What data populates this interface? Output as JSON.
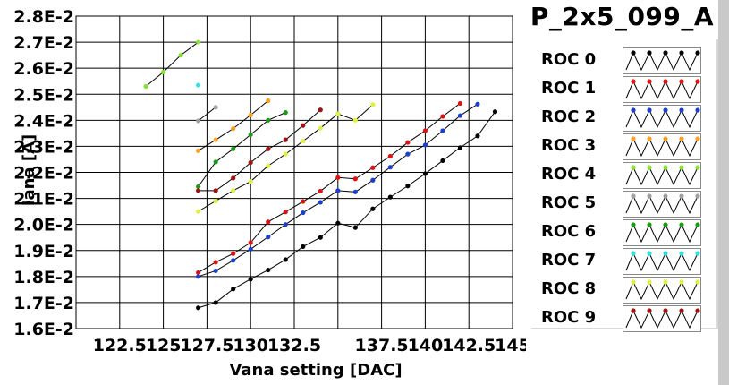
{
  "chart_data": {
    "type": "line",
    "title": "P_2x5_099_A",
    "xlabel": "Vana setting [DAC]",
    "ylabel": "Iana [A]",
    "xlim": [
      120,
      145
    ],
    "ylim": [
      0.016,
      0.028
    ],
    "x_ticks": [
      122.5,
      125,
      127.5,
      130,
      132.5,
      135,
      137.5,
      140,
      142.5,
      145
    ],
    "x_tick_labels": [
      "122.5",
      "125",
      "127.5",
      "130",
      "132.5",
      "",
      "137.5",
      "140",
      "142.5",
      "145"
    ],
    "y_ticks": [
      0.016,
      0.017,
      0.018,
      0.019,
      0.02,
      0.021,
      0.022,
      0.023,
      0.024,
      0.025,
      0.026,
      0.027,
      0.028
    ],
    "y_tick_labels": [
      "1.6E-2",
      "1.7E-2",
      "1.8E-2",
      "1.9E-2",
      "2.0E-2",
      "2.1E-2",
      "2.2E-2",
      "2.3E-2",
      "2.4E-2",
      "2.5E-2",
      "2.6E-2",
      "2.7E-2",
      "2.8E-2"
    ],
    "grid": true,
    "legend_position": "right",
    "series": [
      {
        "name": "ROC 0",
        "color": "#000000",
        "x": [
          127,
          128,
          129,
          130,
          131,
          132,
          133,
          134,
          135,
          136,
          137,
          138,
          139,
          140,
          141,
          142,
          143,
          144
        ],
        "y": [
          0.0168,
          0.017,
          0.01752,
          0.0179,
          0.01825,
          0.01865,
          0.01915,
          0.0195,
          0.02005,
          0.01988,
          0.0206,
          0.02105,
          0.02148,
          0.02195,
          0.02245,
          0.02295,
          0.0234,
          0.02433
        ]
      },
      {
        "name": "ROC 1",
        "color": "#e01010",
        "x": [
          127,
          128,
          129,
          130,
          131,
          132,
          133,
          134,
          135,
          136,
          137,
          138,
          139,
          140,
          141,
          142
        ],
        "y": [
          0.01815,
          0.01855,
          0.01888,
          0.0193,
          0.0201,
          0.02048,
          0.02088,
          0.02128,
          0.0218,
          0.02175,
          0.02218,
          0.02262,
          0.02315,
          0.0236,
          0.02415,
          0.02465
        ]
      },
      {
        "name": "ROC 2",
        "color": "#1a3fd0",
        "x": [
          127,
          128,
          129,
          130,
          131,
          132,
          133,
          134,
          135,
          136,
          137,
          138,
          139,
          140,
          141,
          142,
          143
        ],
        "y": [
          0.018,
          0.01822,
          0.01862,
          0.01905,
          0.01952,
          0.02,
          0.02045,
          0.02085,
          0.0213,
          0.02125,
          0.0217,
          0.0222,
          0.0227,
          0.02305,
          0.0236,
          0.02418,
          0.02462
        ]
      },
      {
        "name": "ROC 3",
        "color": "#ffa020",
        "x": [
          127,
          128,
          129,
          130,
          131
        ],
        "y": [
          0.02283,
          0.02325,
          0.02368,
          0.0242,
          0.02475
        ]
      },
      {
        "name": "ROC 4",
        "color": "#88e030",
        "x": [
          124,
          125,
          126,
          127
        ],
        "y": [
          0.0253,
          0.02585,
          0.0265,
          0.027
        ]
      },
      {
        "name": "ROC 5",
        "color": "#a0a0a0",
        "x": [
          127,
          128
        ],
        "y": [
          0.02398,
          0.0245
        ]
      },
      {
        "name": "ROC 6",
        "color": "#1a9a1a",
        "x": [
          127,
          128,
          129,
          130,
          131,
          132
        ],
        "y": [
          0.02145,
          0.0224,
          0.0229,
          0.02345,
          0.024,
          0.0243
        ]
      },
      {
        "name": "ROC 7",
        "color": "#30e0e0",
        "x": [
          127
        ],
        "y": [
          0.02535
        ]
      },
      {
        "name": "ROC 8",
        "color": "#e0f040",
        "x": [
          127,
          128,
          129,
          130,
          131,
          132,
          133,
          134,
          135,
          136,
          137
        ],
        "y": [
          0.0205,
          0.0209,
          0.0213,
          0.02165,
          0.02225,
          0.0227,
          0.0232,
          0.0237,
          0.02425,
          0.024,
          0.0246
        ]
      },
      {
        "name": "ROC 9",
        "color": "#a01010",
        "x": [
          127,
          128,
          129,
          130,
          131,
          132,
          133,
          134
        ],
        "y": [
          0.0213,
          0.0213,
          0.02178,
          0.02238,
          0.0229,
          0.02325,
          0.0238,
          0.0244
        ]
      }
    ]
  }
}
